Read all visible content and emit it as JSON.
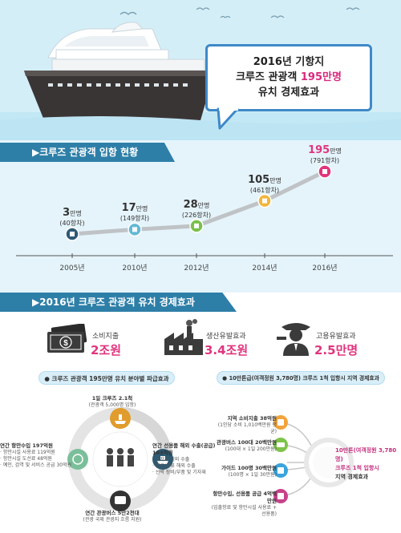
{
  "header": {
    "line1": "2016년 기항지",
    "line2_pre": "크루즈 관광객 ",
    "line2_hl": "195만명",
    "line3": "유치 경제효과"
  },
  "section1": {
    "title": "▶크루즈 관광객 입항 현황"
  },
  "chart_data": {
    "type": "line",
    "categories": [
      "2005년",
      "2010년",
      "2012년",
      "2014년",
      "2016년"
    ],
    "series": [
      {
        "values": [
          3,
          17,
          28,
          105,
          195
        ]
      }
    ],
    "value_labels": [
      "3",
      "17",
      "28",
      "105",
      "195"
    ],
    "unit": "만명",
    "sublabels": [
      "(40항차)",
      "(149항차)",
      "(226항차)",
      "(461항차)",
      "(791항차)"
    ]
  },
  "section2": {
    "title": "▶2016년 크루즈 관광객 유치 경제효과"
  },
  "stats": [
    {
      "label": "소비지출",
      "value": "2조원"
    },
    {
      "label": "생산유발효과",
      "value": "3.4조원"
    },
    {
      "label": "고용유발효과",
      "value": "2.5만명"
    }
  ],
  "panel_left": {
    "pill": "● 크루즈 관광객 195만명 유치 분야별 파급효과",
    "top_title": "1일 크루즈 2.1척",
    "top_sub": "(관광객 5,000명 입항)",
    "left_title": "연간 항만수입 197억원",
    "left_sub1": "· 항만시설 사용료 119억원",
    "left_sub2": "· 항만시설 도선료 48억원",
    "left_sub3": "· 예인, 검역 및 서비스 공급 30억원",
    "right_title": "연간 선용품 해외 수출(공급)",
    "right_val": "103억원",
    "right_sub1": "· 식자재 해외 수출",
    "right_sub2": "· 연료/유류 해외 수출",
    "right_sub3": "· 선박 장비/부품 및 기자재",
    "bottom_title": "연간 관광버스 5만2천대",
    "bottom_sub": "(관광 국제 관광지 흐름 지원)"
  },
  "panel_right": {
    "pill": "● 10만톤급(여객정원 3,780명) 크루즈 1척 입항시 지역 경제효과",
    "items": [
      {
        "title": "지역 소비지출 38억원",
        "sub": "(1인당 소비 1,010백만원 평균)"
      },
      {
        "title": "관광버스 100대 20백만원",
        "sub": "(100대 × 1일 200만원)"
      },
      {
        "title": "가이드 100명 30백만원",
        "sub": "(100명 × 1일 30만원)"
      },
      {
        "title": "항만수입, 선용품 공급 4억백만원",
        "sub": "(입출항료 및 항만시설 사용료 + 선용품)"
      }
    ],
    "result1": "10만톤(여객정원 3,780명)",
    "result2": "크루즈 1척 입항시",
    "result3": "지역 경제효과"
  }
}
